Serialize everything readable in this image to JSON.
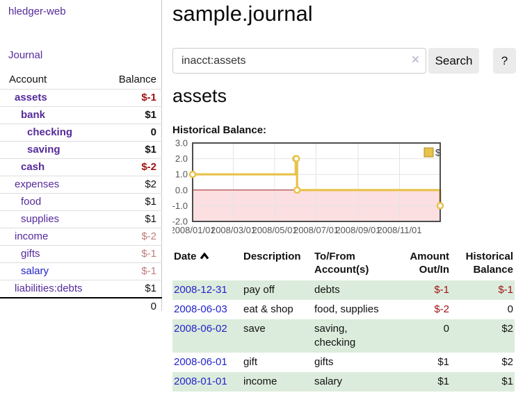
{
  "app": {
    "title": "hledger-web"
  },
  "sidebar": {
    "journal_label": "Journal",
    "table": {
      "account_header": "Account",
      "balance_header": "Balance",
      "rows": [
        {
          "name": "assets",
          "balance": "$-1",
          "level": 1,
          "bold": true,
          "neg": "strong"
        },
        {
          "name": "bank",
          "balance": "$1",
          "level": 2,
          "bold": true,
          "neg": null
        },
        {
          "name": "checking",
          "balance": "0",
          "level": 3,
          "bold": true,
          "neg": null
        },
        {
          "name": "saving",
          "balance": "$1",
          "level": 3,
          "bold": true,
          "neg": null
        },
        {
          "name": "cash",
          "balance": "$-2",
          "level": 2,
          "bold": true,
          "neg": "strong"
        },
        {
          "name": "expenses",
          "balance": "$2",
          "level": 1,
          "bold": false,
          "neg": null
        },
        {
          "name": "food",
          "balance": "$1",
          "level": 2,
          "bold": false,
          "neg": null
        },
        {
          "name": "supplies",
          "balance": "$1",
          "level": 2,
          "bold": false,
          "neg": null
        },
        {
          "name": "income",
          "balance": "$-2",
          "level": 1,
          "bold": false,
          "neg": "faded"
        },
        {
          "name": "gifts",
          "balance": "$-1",
          "level": 2,
          "bold": false,
          "neg": "faded"
        },
        {
          "name": "salary",
          "balance": "$-1",
          "level": 2,
          "bold": false,
          "neg": "faded",
          "link": "blue"
        },
        {
          "name": "liabilities:debts",
          "balance": "$1",
          "level": 1,
          "bold": false,
          "neg": null
        }
      ],
      "total": "0"
    }
  },
  "main": {
    "title": "sample.journal",
    "search": {
      "value": "inacct:assets",
      "clear_icon": "×",
      "button_label": "Search",
      "help_label": "?"
    },
    "account_heading": "assets"
  },
  "register": {
    "headers": {
      "date": "Date",
      "description": "Description",
      "accounts": "To/From Account(s)",
      "amount": "Amount Out/In",
      "balance": "Historical Balance"
    },
    "sort_indicator": "ascending",
    "rows": [
      {
        "date": "2008-12-31",
        "description": "pay off",
        "accounts": "debts",
        "amount": "$-1",
        "amount_neg": true,
        "balance": "$-1",
        "balance_neg": true,
        "shaded": true
      },
      {
        "date": "2008-06-03",
        "description": "eat & shop",
        "accounts": "food, supplies",
        "amount": "$-2",
        "amount_neg": true,
        "balance": "0",
        "balance_neg": false,
        "shaded": false
      },
      {
        "date": "2008-06-02",
        "description": "save",
        "accounts": "saving, checking",
        "amount": "0",
        "amount_neg": false,
        "balance": "$2",
        "balance_neg": false,
        "shaded": true
      },
      {
        "date": "2008-06-01",
        "description": "gift",
        "accounts": "gifts",
        "amount": "$1",
        "amount_neg": false,
        "balance": "$2",
        "balance_neg": false,
        "shaded": false
      },
      {
        "date": "2008-01-01",
        "description": "income",
        "accounts": "salary",
        "amount": "$1",
        "amount_neg": false,
        "balance": "$1",
        "balance_neg": false,
        "shaded": true
      }
    ]
  },
  "chart_data": {
    "type": "line",
    "title": "Historical Balance:",
    "legend": [
      {
        "label": "$",
        "color": "#e8c24a"
      }
    ],
    "legend_position": "top-right",
    "grid": true,
    "x_range": [
      "2008-01-01",
      "2008-12-31"
    ],
    "ylim": [
      -2,
      3
    ],
    "y_ticks": [
      {
        "value": 3,
        "label": "3.0"
      },
      {
        "value": 2,
        "label": "2.0"
      },
      {
        "value": 1,
        "label": "1.0"
      },
      {
        "value": 0,
        "label": "0.0"
      },
      {
        "value": -1,
        "label": "-1.0"
      },
      {
        "value": -2,
        "label": "-2.0"
      }
    ],
    "x_ticks": [
      {
        "date": "2008-01-01",
        "label": "2008/01/01"
      },
      {
        "date": "2008-03-01",
        "label": "2008/03/01"
      },
      {
        "date": "2008-05-01",
        "label": "2008/05/01"
      },
      {
        "date": "2008-07-01",
        "label": "2008/07/01"
      },
      {
        "date": "2008-09-01",
        "label": "2008/09/01"
      },
      {
        "date": "2008-11-01",
        "label": "2008/11/01"
      }
    ],
    "series": [
      {
        "name": "$",
        "color": "#e8c24a",
        "step": true,
        "points": [
          [
            "2008-01-01",
            1
          ],
          [
            "2008-06-01",
            2
          ],
          [
            "2008-06-02",
            2
          ],
          [
            "2008-06-03",
            0
          ],
          [
            "2008-12-31",
            -1
          ]
        ]
      }
    ],
    "negative_region_color": "#fbdfe1",
    "zero_line_color": "#991919"
  },
  "colors": {
    "link_purple": "#552a9b",
    "link_blue": "#2323cc",
    "negative_strong": "#9d1111",
    "negative_faded": "#bd7c7c",
    "row_highlight_green": "#dcecdc",
    "chart_line_gold": "#e8c24a"
  }
}
